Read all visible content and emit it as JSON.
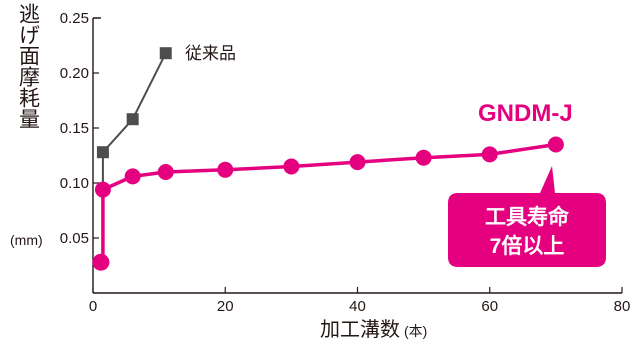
{
  "chart_data": {
    "type": "line",
    "xlabel": "加工溝数",
    "xlabel_unit": "(本)",
    "ylabel": "逃げ面摩耗量",
    "ylabel_unit": "(mm)",
    "xlim": [
      0,
      80
    ],
    "ylim": [
      0,
      0.25
    ],
    "x_ticks": [
      "0",
      "20",
      "40",
      "60",
      "80"
    ],
    "y_ticks": [
      "0.05",
      "0.10",
      "0.15",
      "0.20",
      "0.25"
    ],
    "grid": false,
    "series": [
      {
        "name": "従来品",
        "color": "#4d4d4d",
        "marker": "square",
        "points": [
          [
            1.5,
            0.128
          ],
          [
            6,
            0.158
          ],
          [
            11,
            0.218
          ]
        ]
      },
      {
        "name": "GNDM-J",
        "color": "#e4007f",
        "marker": "circle",
        "points": [
          [
            1.5,
            0.094
          ],
          [
            6,
            0.106
          ],
          [
            11,
            0.11
          ],
          [
            20,
            0.112
          ],
          [
            30,
            0.115
          ],
          [
            40,
            0.119
          ],
          [
            50,
            0.123
          ],
          [
            60,
            0.126
          ],
          [
            70,
            0.135
          ]
        ]
      }
    ],
    "shared_start_point": [
      1.5,
      0.028
    ],
    "annotation": {
      "line1": "工具寿命",
      "line2": "7倍以上",
      "color": "#e4007f"
    }
  }
}
